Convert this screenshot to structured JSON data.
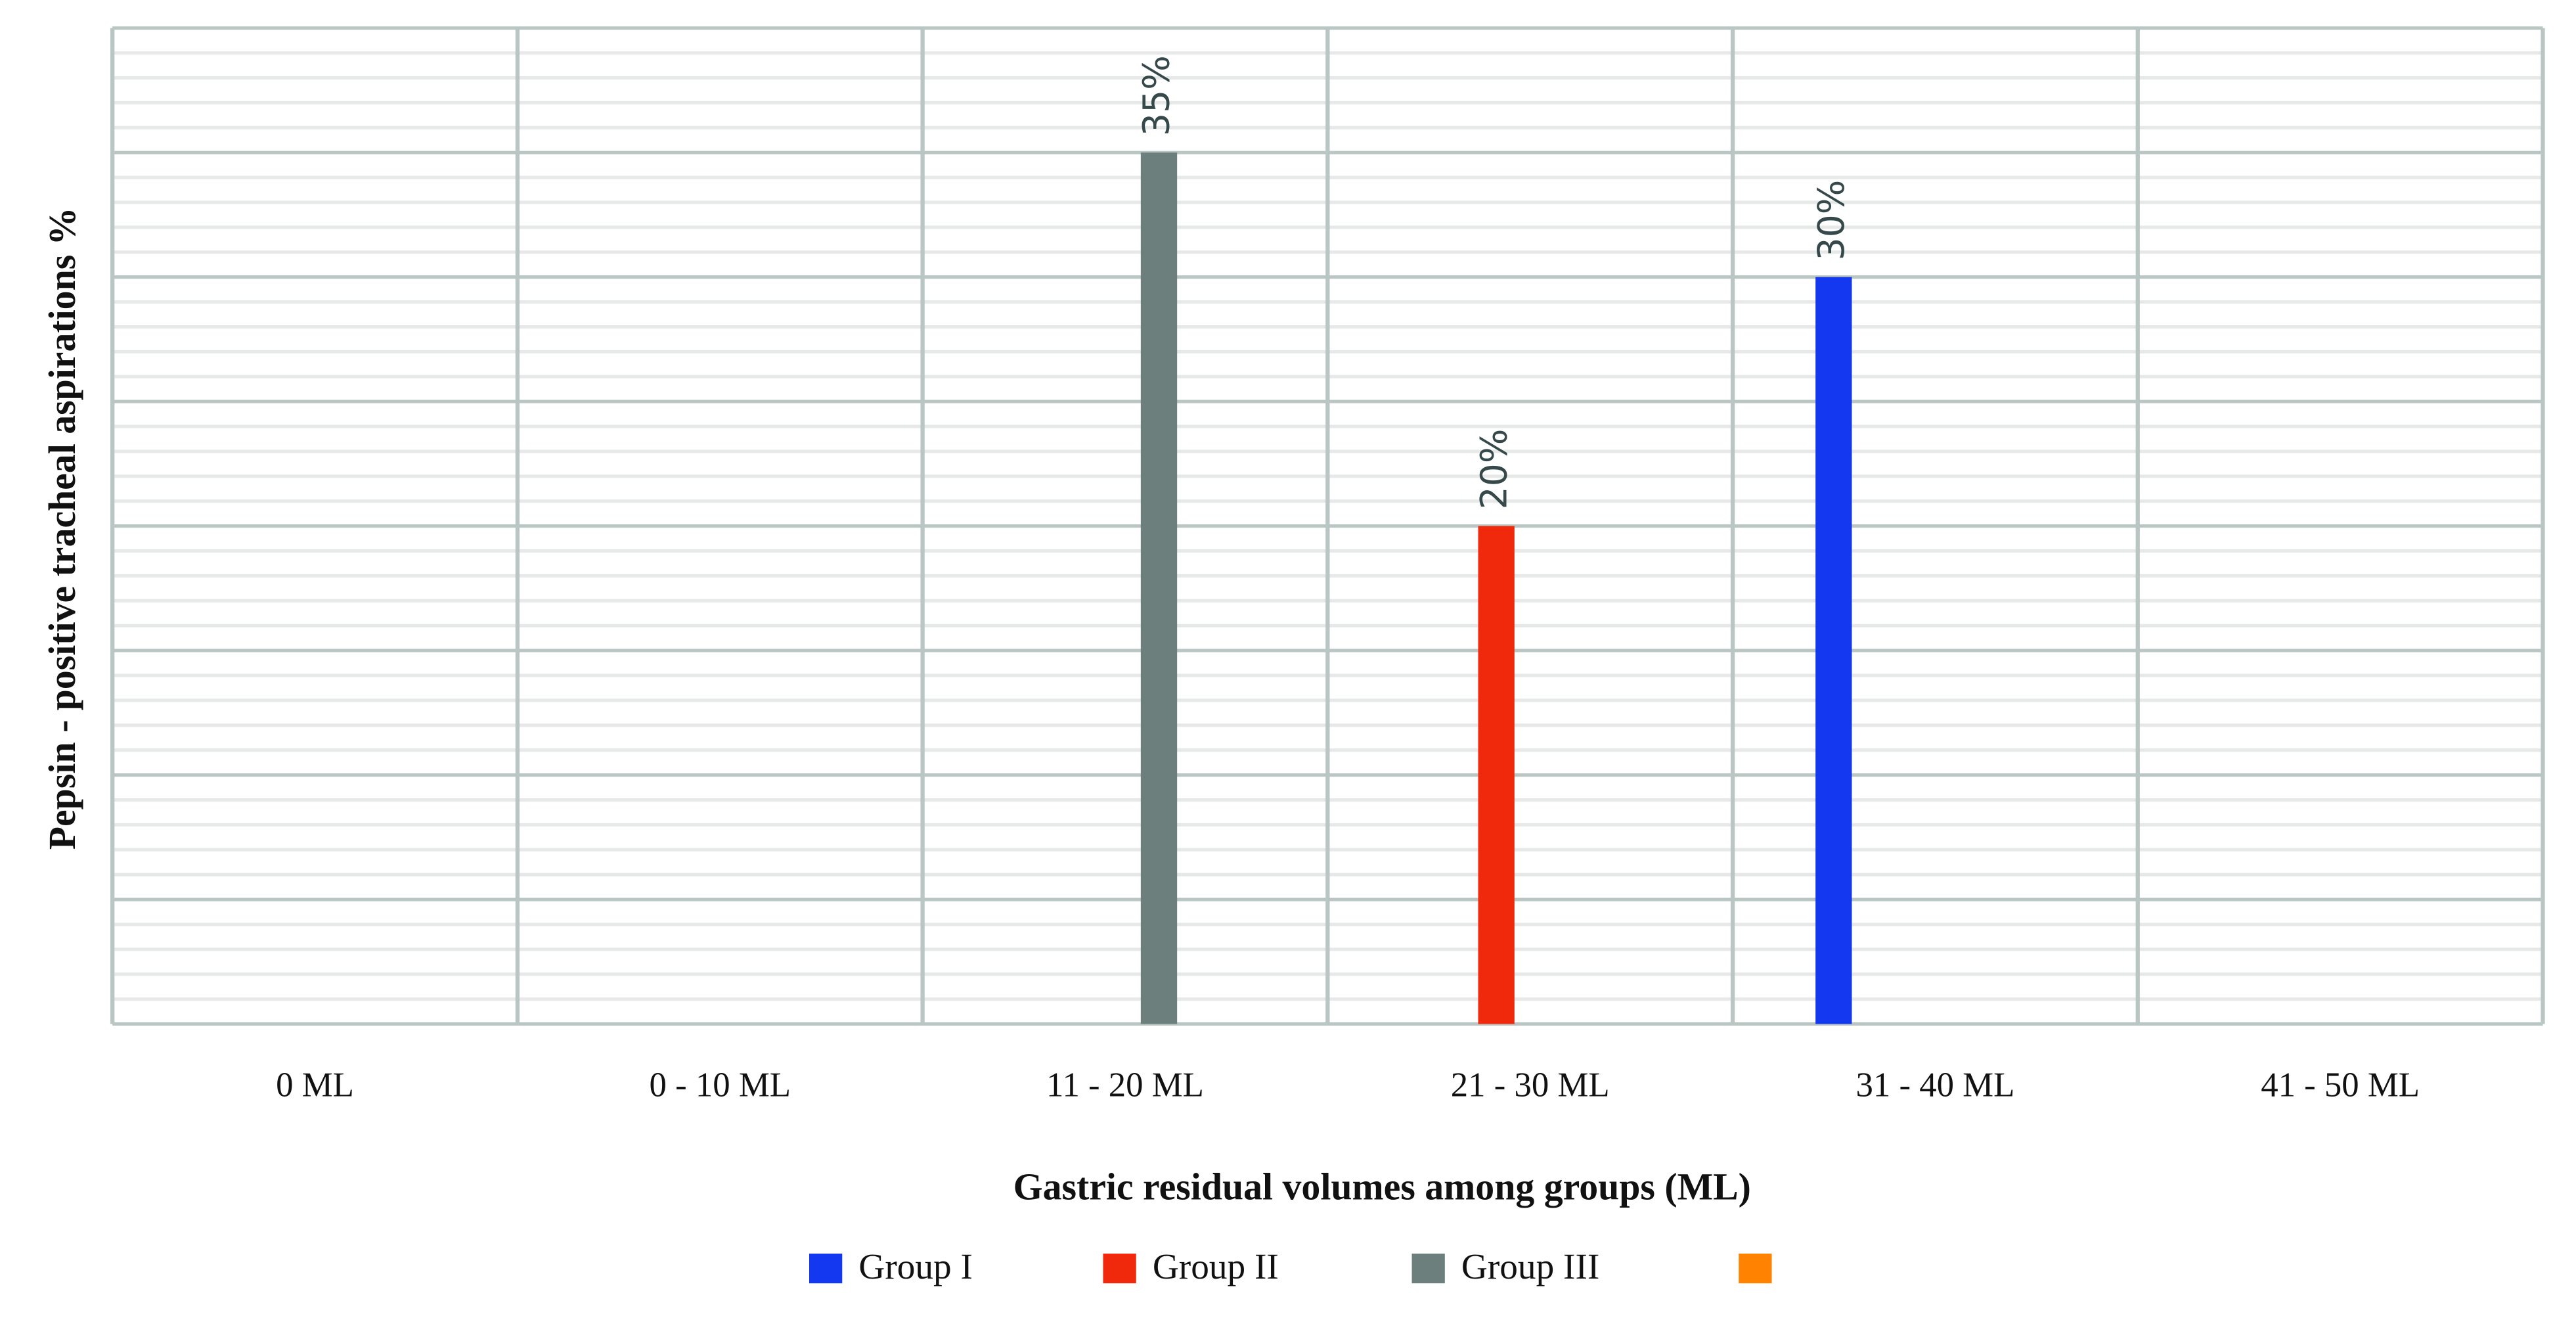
{
  "chart_data": {
    "type": "bar",
    "x_label": "Gastric residual volumes among groups (ML)",
    "y_label": "Pepsin - positive tracheal aspirations %",
    "categories": [
      "0 ML",
      "0 - 10 ML",
      "11 - 20 ML",
      "21 - 30 ML",
      "31 - 40 ML",
      "41 - 50 ML"
    ],
    "series": [
      {
        "name": "Group I",
        "color": "#1338f0",
        "values": [
          0,
          0,
          0,
          0,
          30,
          0
        ],
        "value_labels": [
          null,
          null,
          null,
          null,
          "30%",
          null
        ]
      },
      {
        "name": "Group II",
        "color": "#f0290c",
        "values": [
          0,
          0,
          0,
          20,
          0,
          0
        ],
        "value_labels": [
          null,
          null,
          null,
          "20%",
          null,
          null
        ]
      },
      {
        "name": "Group III",
        "color": "#6c7f7c",
        "values": [
          0,
          0,
          35,
          0,
          0,
          0
        ],
        "value_labels": [
          null,
          null,
          "35%",
          null,
          null,
          null
        ]
      },
      {
        "color": "#ff8200",
        "values": [
          0,
          0,
          0,
          0,
          0,
          0
        ]
      }
    ],
    "ylim": [
      0,
      40
    ],
    "yticks": [
      0,
      5,
      10,
      15,
      20,
      25,
      30,
      35,
      40
    ],
    "minor_grid_step": 1,
    "grid": true,
    "legend": "bottom"
  }
}
